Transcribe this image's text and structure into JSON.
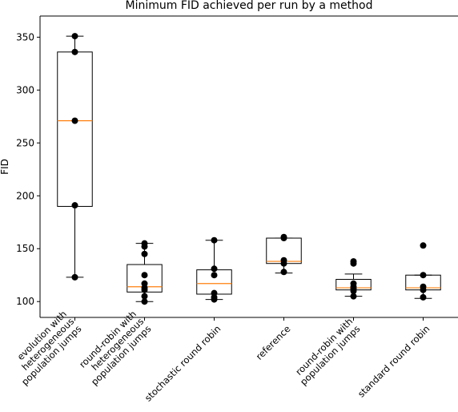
{
  "chart_data": {
    "type": "boxplot",
    "title": "Minimum FID achieved per run by a method",
    "xlabel": "",
    "ylabel": "FID",
    "ylim": [
      85,
      370
    ],
    "yticks": [
      100,
      150,
      200,
      250,
      300,
      350
    ],
    "grid": false,
    "colors": {
      "box": "#000000",
      "median": "#ff7f0e",
      "points": "#000000"
    },
    "categories": [
      {
        "label_lines": [
          "evolution with",
          "heterogeneous",
          "population jumps"
        ],
        "whisker_low": 123,
        "q1": 190,
        "median": 271,
        "q3": 336,
        "whisker_high": 351,
        "points": [
          351,
          336,
          271,
          191,
          123
        ]
      },
      {
        "label_lines": [
          "round-robin with",
          "heterogeneous",
          "population jumps"
        ],
        "whisker_low": 100,
        "q1": 109,
        "median": 114,
        "q3": 135,
        "whisker_high": 155,
        "points": [
          155,
          152,
          145,
          125,
          117,
          113,
          111,
          105,
          100
        ]
      },
      {
        "label_lines": [
          "stochastic round robin"
        ],
        "whisker_low": 102,
        "q1": 107,
        "median": 117,
        "q3": 130,
        "whisker_high": 158,
        "points": [
          158,
          131,
          125,
          108,
          104,
          102
        ]
      },
      {
        "label_lines": [
          "reference"
        ],
        "whisker_low": 127,
        "q1": 136,
        "median": 138,
        "q3": 160,
        "whisker_high": 160,
        "points": [
          161,
          160,
          139,
          136,
          128
        ]
      },
      {
        "label_lines": [
          "round-robin with",
          "population jumps"
        ],
        "whisker_low": 105,
        "q1": 111,
        "median": 113,
        "q3": 121,
        "whisker_high": 126,
        "points": [
          138,
          136,
          117,
          114,
          112,
          110,
          105
        ]
      },
      {
        "label_lines": [
          "standard round robin"
        ],
        "whisker_low": 103,
        "q1": 111,
        "median": 113,
        "q3": 125,
        "whisker_high": 125,
        "points": [
          153,
          125,
          114,
          111,
          104
        ]
      }
    ]
  }
}
